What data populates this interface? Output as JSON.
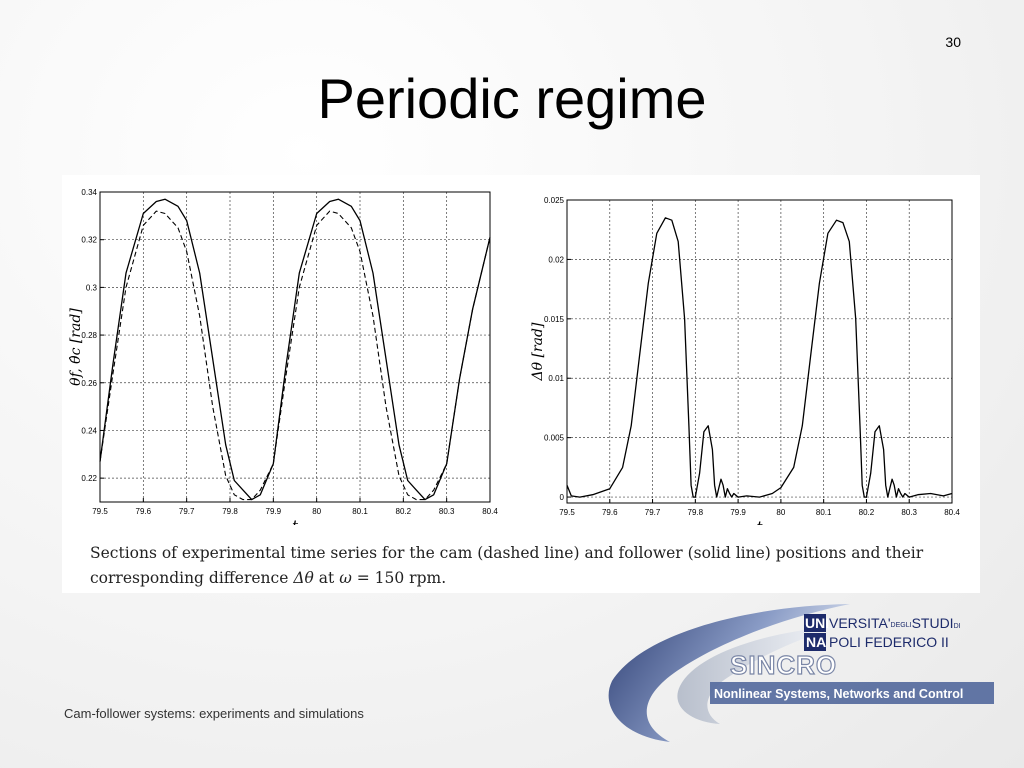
{
  "slide": {
    "number": "30",
    "title": "Periodic regime",
    "footer": "Cam-follower systems: experiments and simulations"
  },
  "caption": {
    "line1": "Sections of experimental time series for the cam (dashed line) and follower (solid line) positions and their",
    "line2_prefix": "corresponding difference ",
    "line2_delta": "Δθ",
    "line2_mid": " at ",
    "line2_omega": "ω",
    "line2_suffix": " = 150 rpm."
  },
  "logo": {
    "uni": "UNI",
    "na": "NA",
    "versita": "VERSITA'",
    "degli": "DEGLI",
    "studi": "STUDI",
    "di": "DI",
    "poli": "POLI FEDERICO II",
    "sincro": "SINCRO",
    "tagline": "Nonlinear Systems, Networks and Control",
    "colors": {
      "navy": "#1d2b6b",
      "swoosh": "#5a6fa0"
    }
  },
  "chart_data": [
    {
      "type": "line",
      "xlabel": "t",
      "ylabel": "θf, θ̂c [rad]",
      "xlim": [
        79.5,
        80.4
      ],
      "ylim": [
        0.21,
        0.34
      ],
      "xticks": [
        "79.5",
        "79.6",
        "79.7",
        "79.8",
        "79.9",
        "80",
        "80.1",
        "80.2",
        "80.3",
        "80.4"
      ],
      "yticks": [
        "0.22",
        "0.24",
        "0.26",
        "0.28",
        "0.3",
        "0.32",
        "0.34"
      ],
      "grid": true,
      "series": [
        {
          "style": "solid",
          "x": [
            79.5,
            79.53,
            79.56,
            79.6,
            79.63,
            79.65,
            79.68,
            79.7,
            79.73,
            79.76,
            79.79,
            79.81,
            79.83,
            79.85,
            79.87,
            79.9,
            79.93,
            79.96,
            80.0,
            80.03,
            80.05,
            80.08,
            80.1,
            80.13,
            80.16,
            80.19,
            80.21,
            80.23,
            80.25,
            80.27,
            80.3,
            80.33,
            80.36,
            80.4
          ],
          "y": [
            0.227,
            0.268,
            0.306,
            0.331,
            0.336,
            0.337,
            0.334,
            0.328,
            0.306,
            0.27,
            0.234,
            0.219,
            0.215,
            0.211,
            0.213,
            0.226,
            0.268,
            0.306,
            0.331,
            0.336,
            0.337,
            0.334,
            0.328,
            0.306,
            0.27,
            0.234,
            0.219,
            0.215,
            0.211,
            0.213,
            0.226,
            0.262,
            0.291,
            0.321
          ]
        },
        {
          "style": "dashed",
          "x": [
            79.5,
            79.53,
            79.56,
            79.6,
            79.63,
            79.65,
            79.68,
            79.7,
            79.73,
            79.76,
            79.79,
            79.81,
            79.83,
            79.85,
            79.87,
            79.9,
            79.93,
            79.96,
            80.0,
            80.03,
            80.05,
            80.08,
            80.1,
            80.13,
            80.16,
            80.19,
            80.21,
            80.23,
            80.25,
            80.27,
            80.3,
            80.33,
            80.36,
            80.4
          ],
          "y": [
            0.227,
            0.264,
            0.3,
            0.326,
            0.332,
            0.331,
            0.325,
            0.315,
            0.288,
            0.25,
            0.221,
            0.213,
            0.211,
            0.211,
            0.215,
            0.226,
            0.264,
            0.3,
            0.326,
            0.332,
            0.331,
            0.325,
            0.315,
            0.288,
            0.25,
            0.221,
            0.213,
            0.211,
            0.211,
            0.215,
            0.226,
            0.262,
            0.291,
            0.321
          ]
        }
      ]
    },
    {
      "type": "line",
      "xlabel": "t",
      "ylabel": "Δθ [rad]",
      "xlim": [
        79.5,
        80.4
      ],
      "ylim": [
        -0.0005,
        0.025
      ],
      "xticks": [
        "79.5",
        "79.6",
        "79.7",
        "79.8",
        "79.9",
        "80",
        "80.1",
        "80.2",
        "80.3",
        "80.4"
      ],
      "yticks": [
        "0",
        "0.005",
        "0.01",
        "0.015",
        "0.02",
        "0.025"
      ],
      "grid": true,
      "series": [
        {
          "style": "solid",
          "x": [
            79.5,
            79.51,
            79.53,
            79.56,
            79.6,
            79.63,
            79.65,
            79.67,
            79.69,
            79.71,
            79.73,
            79.745,
            79.76,
            79.775,
            79.785,
            79.79,
            79.795,
            79.8,
            79.81,
            79.82,
            79.83,
            79.84,
            79.845,
            79.85,
            79.855,
            79.86,
            79.865,
            79.87,
            79.875,
            79.88,
            79.885,
            79.89,
            79.9,
            79.92,
            79.95,
            79.98,
            80.0,
            80.03,
            80.05,
            80.07,
            80.09,
            80.11,
            80.13,
            80.145,
            80.16,
            80.175,
            80.185,
            80.19,
            80.195,
            80.2,
            80.21,
            80.22,
            80.23,
            80.24,
            80.245,
            80.25,
            80.255,
            80.26,
            80.265,
            80.27,
            80.275,
            80.28,
            80.285,
            80.29,
            80.3,
            80.32,
            80.35,
            80.38,
            80.4
          ],
          "y": [
            0.001,
            0.0001,
            0.0,
            0.0002,
            0.0007,
            0.0025,
            0.006,
            0.012,
            0.018,
            0.0222,
            0.0235,
            0.0233,
            0.0215,
            0.015,
            0.006,
            0.001,
            0.0,
            0.0,
            0.002,
            0.0055,
            0.006,
            0.004,
            0.001,
            0.0,
            0.0008,
            0.0015,
            0.001,
            0.0,
            0.0007,
            0.0003,
            0.0,
            0.0003,
            0.0,
            0.0001,
            0.0,
            0.0003,
            0.0008,
            0.0025,
            0.006,
            0.012,
            0.018,
            0.0222,
            0.0233,
            0.0231,
            0.0215,
            0.015,
            0.006,
            0.001,
            0.0,
            0.0,
            0.002,
            0.0055,
            0.006,
            0.004,
            0.001,
            0.0,
            0.0008,
            0.0015,
            0.001,
            0.0,
            0.0007,
            0.0003,
            0.0,
            0.0003,
            0.0,
            0.0002,
            0.0003,
            0.0001,
            0.0003
          ]
        }
      ]
    }
  ]
}
